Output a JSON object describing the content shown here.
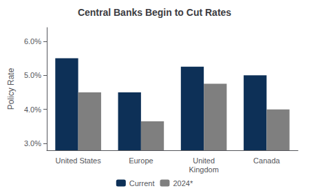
{
  "chart_data": {
    "type": "bar",
    "title": "Central Banks Begin to Cut Rates",
    "ylabel": "Policy Rate",
    "categories": [
      "United States",
      "Europe",
      "United\nKingdom",
      "Canada"
    ],
    "series": [
      {
        "name": "Current",
        "color": "#0d3057",
        "values": [
          5.5,
          4.5,
          5.25,
          5.0
        ]
      },
      {
        "name": "2024*",
        "color": "#7f7f7f",
        "values": [
          4.5,
          3.65,
          4.75,
          4.0
        ]
      }
    ],
    "ylim": [
      2.8,
      6.4
    ],
    "yticks": [
      {
        "value": 3.0,
        "label": "3.0%"
      },
      {
        "value": 4.0,
        "label": "4.0%"
      },
      {
        "value": 5.0,
        "label": "5.0%"
      },
      {
        "value": 6.0,
        "label": "6.0%"
      }
    ],
    "grid": false,
    "legend": "bottom"
  }
}
